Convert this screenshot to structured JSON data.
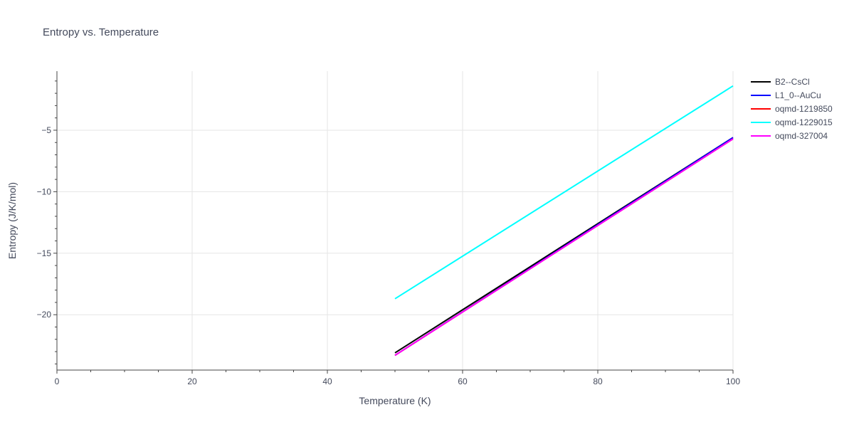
{
  "chart_data": {
    "type": "line",
    "title": "Entropy vs. Temperature",
    "xlabel": "Temperature (K)",
    "ylabel": "Entropy (J/K/mol)",
    "xlim": [
      0,
      100
    ],
    "ylim": [
      -24.5,
      -0.2
    ],
    "x_ticks": [
      0,
      20,
      40,
      60,
      80,
      100
    ],
    "y_ticks": [
      -5,
      -10,
      -15,
      -20
    ],
    "x_tick_labels": [
      "0",
      "20",
      "40",
      "60",
      "80",
      "100"
    ],
    "y_tick_labels": [
      "−5",
      "−10",
      "−15",
      "−20"
    ],
    "grid": true,
    "legend_position": "top-right",
    "series": [
      {
        "name": "B2--CsCl",
        "color": "#000000",
        "x": [
          50,
          100
        ],
        "y": [
          -23.1,
          -5.6
        ]
      },
      {
        "name": "L1_0--AuCu",
        "color": "#0000ff",
        "x": [
          50,
          100
        ],
        "y": [
          -23.3,
          -5.6
        ]
      },
      {
        "name": "oqmd-1219850",
        "color": "#ff0000",
        "x": [
          50,
          100
        ],
        "y": [
          -23.3,
          -5.7
        ]
      },
      {
        "name": "oqmd-1229015",
        "color": "#00ffff",
        "x": [
          50,
          100
        ],
        "y": [
          -18.7,
          -1.4
        ]
      },
      {
        "name": "oqmd-327004",
        "color": "#ff00ff",
        "x": [
          50,
          100
        ],
        "y": [
          -23.3,
          -5.7
        ]
      }
    ]
  }
}
